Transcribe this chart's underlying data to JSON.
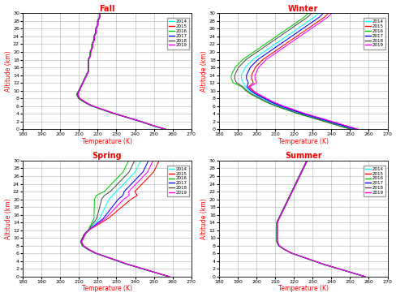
{
  "seasons": [
    "Fall",
    "Winter",
    "Spring",
    "Summer"
  ],
  "years": [
    "2014",
    "2015",
    "2016",
    "2017",
    "2018",
    "2019"
  ],
  "colors": [
    "#00ffff",
    "#ff0000",
    "#00cc00",
    "#0000ff",
    "#4d4d4d",
    "#ff00ff"
  ],
  "xlim": [
    180,
    270
  ],
  "ylim": [
    0,
    30
  ],
  "xticks": [
    180,
    190,
    200,
    210,
    220,
    230,
    240,
    250,
    260,
    270
  ],
  "yticks": [
    0,
    2,
    4,
    6,
    8,
    10,
    12,
    14,
    16,
    18,
    20,
    22,
    24,
    26,
    28,
    30
  ],
  "xlabel": "Temperature (K)",
  "ylabel": "Altitude (km)",
  "title_color": "#ff0000",
  "label_color": "#ff0000",
  "grid_color": "#b0b0b0",
  "background_color": "#ffffff",
  "fall_profiles": {
    "altitudes": [
      0,
      1,
      2,
      3,
      4,
      5,
      6,
      7,
      8,
      9,
      10,
      11,
      12,
      13,
      14,
      15,
      16,
      17,
      18,
      19,
      20,
      21,
      22,
      23,
      24,
      25,
      26,
      27,
      28,
      29,
      30
    ],
    "base_T": [
      256,
      249,
      243,
      236,
      229,
      223,
      217,
      213,
      210,
      209,
      210,
      211,
      212,
      213,
      214,
      215,
      215,
      215,
      215,
      216,
      216,
      217,
      217,
      218,
      218,
      219,
      219,
      220,
      220,
      221,
      221
    ],
    "offsets": [
      0,
      1.5,
      -1,
      0.8,
      -0.8,
      1.2
    ]
  },
  "winter_profiles": {
    "altitudes": [
      0,
      1,
      2,
      3,
      4,
      5,
      6,
      7,
      8,
      9,
      10,
      11,
      12,
      13,
      14,
      15,
      16,
      17,
      18,
      19,
      20,
      21,
      22,
      23,
      24,
      25,
      26,
      27,
      28,
      29,
      30
    ],
    "base_T": [
      252,
      245,
      238,
      231,
      224,
      218,
      212,
      207,
      203,
      199,
      196,
      194,
      193,
      192,
      192,
      193,
      194,
      196,
      198,
      201,
      204,
      207,
      210,
      213,
      216,
      219,
      222,
      225,
      228,
      231,
      233
    ],
    "offsets": [
      0,
      3,
      -3,
      1.5,
      -2,
      4
    ]
  },
  "spring_profiles": {
    "altitudes": [
      0,
      1,
      2,
      3,
      4,
      5,
      6,
      7,
      8,
      9,
      10,
      11,
      12,
      13,
      14,
      15,
      16,
      17,
      18,
      19,
      20,
      21,
      22,
      23,
      24,
      25,
      26,
      27,
      28,
      29,
      30
    ],
    "base_T": [
      258,
      251,
      244,
      237,
      231,
      225,
      219,
      215,
      212,
      211,
      212,
      213,
      215,
      217,
      219,
      221,
      222,
      223,
      224,
      225,
      226,
      228,
      230,
      232,
      234,
      236,
      238,
      240,
      241,
      242,
      243
    ],
    "strat_offsets": [
      0,
      12,
      -8,
      5,
      -4,
      8
    ],
    "trop_offsets": [
      0,
      1,
      -0.5,
      0.5,
      -0.5,
      0.8
    ]
  },
  "summer_profiles": {
    "altitudes": [
      0,
      1,
      2,
      3,
      4,
      5,
      6,
      7,
      8,
      9,
      10,
      11,
      12,
      13,
      14,
      15,
      16,
      17,
      18,
      19,
      20,
      21,
      22,
      23,
      24,
      25,
      26,
      27,
      28,
      29,
      30
    ],
    "base_T": [
      258,
      251,
      244,
      237,
      231,
      225,
      219,
      215,
      212,
      211,
      211,
      211,
      211,
      211,
      211,
      212,
      213,
      214,
      215,
      216,
      217,
      218,
      219,
      220,
      221,
      222,
      223,
      224,
      225,
      226,
      227
    ],
    "offsets": [
      0,
      0.8,
      -0.5,
      0.5,
      -0.8,
      0.6
    ]
  }
}
